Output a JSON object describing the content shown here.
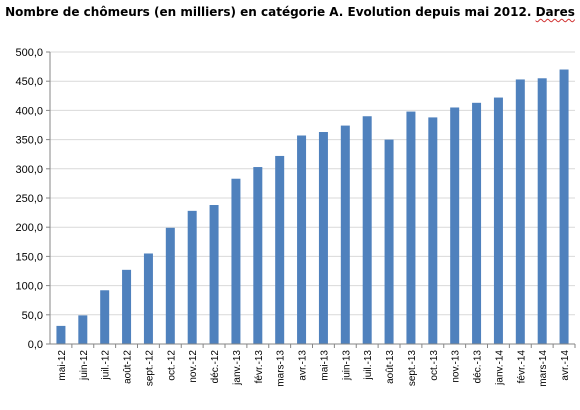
{
  "chart_data": {
    "type": "bar",
    "title_main": "Nombre de chômeurs (en milliers) en catégorie A. Evolution depuis mai 2012.",
    "title_source": "Dares",
    "categories": [
      "mai-12",
      "juin-12",
      "juil.-12",
      "août-12",
      "sept.-12",
      "oct.-12",
      "nov.-12",
      "déc.-12",
      "janv.-13",
      "févr.-13",
      "mars-13",
      "avr.-13",
      "mai-13",
      "juin-13",
      "juil.-13",
      "août-13",
      "sept.-13",
      "oct.-13",
      "nov.-13",
      "déc.-13",
      "janv.-14",
      "févr.-14",
      "mars-14",
      "avr.-14"
    ],
    "values": [
      31,
      49,
      92,
      127,
      155,
      199,
      228,
      238,
      283,
      303,
      322,
      357,
      363,
      374,
      390,
      350,
      398,
      388,
      405,
      413,
      422,
      453,
      455,
      470
    ],
    "yticks": [
      "0,0",
      "50,0",
      "100,0",
      "150,0",
      "200,0",
      "250,0",
      "300,0",
      "350,0",
      "400,0",
      "450,0",
      "500,0"
    ],
    "ylim": [
      0,
      500
    ],
    "grid": true,
    "bar_color": "#4f81bd",
    "grid_color": "#d9d9d9"
  }
}
